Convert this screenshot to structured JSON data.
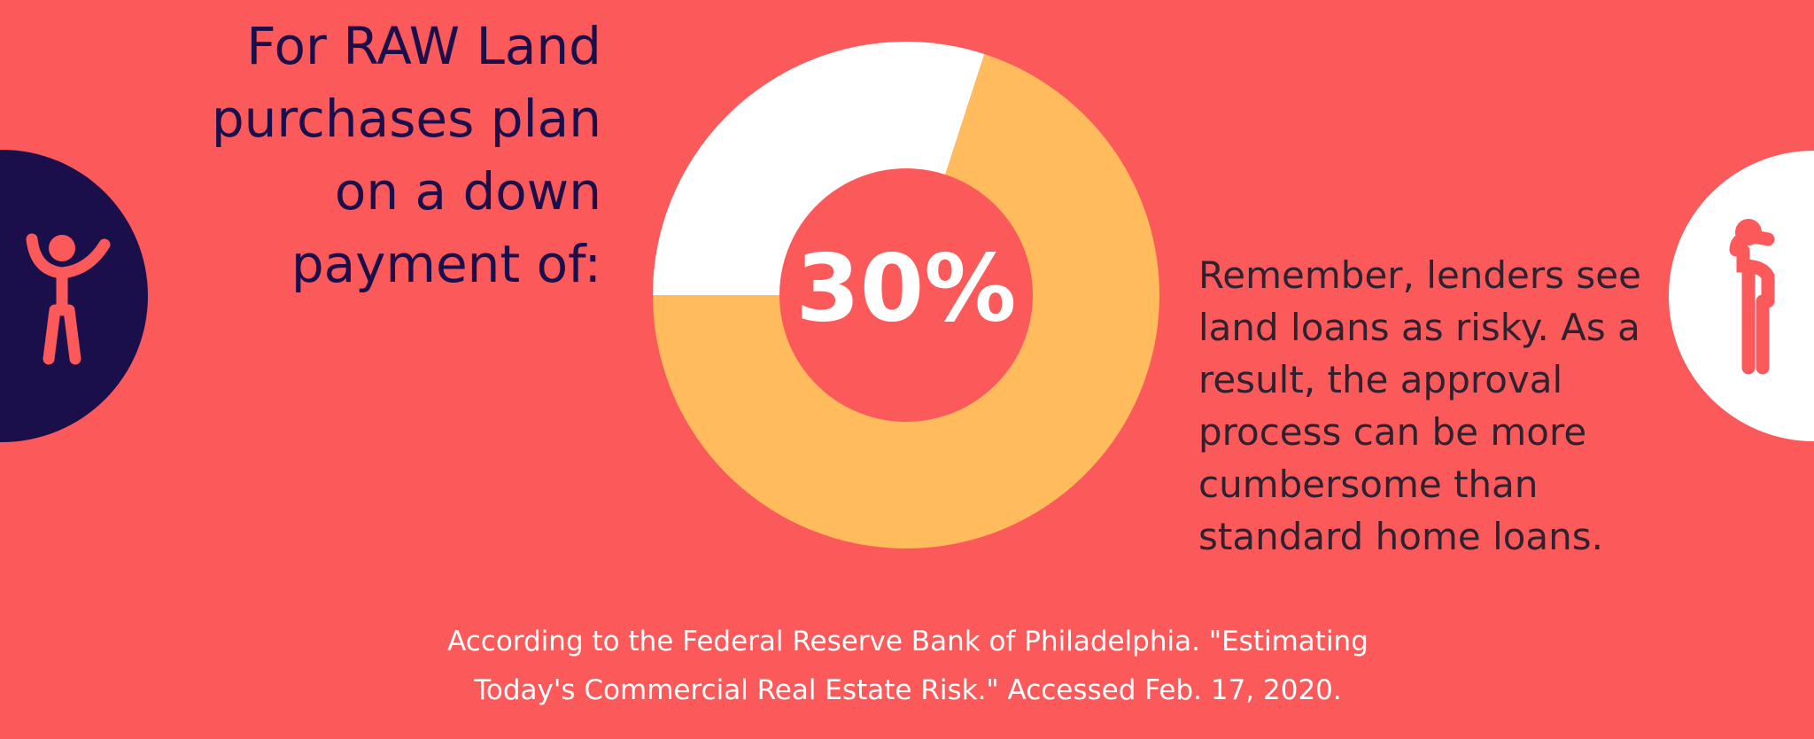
{
  "chart_data": {
    "type": "pie",
    "title_lines": [
      "For RAW Land",
      "purchases plan",
      "on a down",
      "payment of:"
    ],
    "values": [
      30,
      70
    ],
    "colors": [
      "#ffffff",
      "#ffbb5c"
    ],
    "center_label": "30%",
    "annotation_lines": [
      "Remember, lenders see",
      "land loans as risky. As a",
      "result, the approval",
      "process can be more",
      "cumbersome than",
      "standard home loans."
    ],
    "source_lines": [
      "According to the Federal Reserve Bank of Philadelphia. \"Estimating",
      "Today's Commercial Real Estate Risk.\" Accessed Feb. 17, 2020."
    ]
  }
}
